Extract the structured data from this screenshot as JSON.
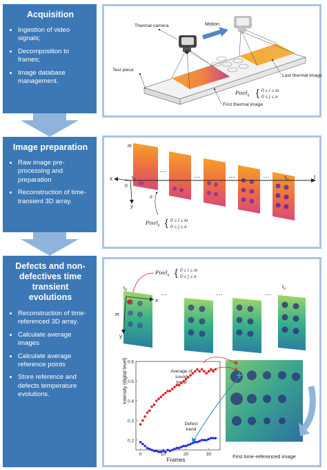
{
  "stages": [
    {
      "title": "Acquisition",
      "bullets": [
        "Ingestion of video signals;",
        "Decomposition to frames;",
        "Image database management."
      ]
    },
    {
      "title": "Image preparation",
      "bullets": [
        "Raw image pre-processing and preparation",
        "Reconstruction of time-transient 3D array."
      ]
    },
    {
      "title": "Defects and non-defectives time transient evolutions",
      "bullets": [
        "Reconstruction of time-referenced 3D array.",
        "Calculate average images",
        "Calculate average reference points",
        "Store reference and defects temperature evolutions."
      ]
    }
  ],
  "acquisition_diagram": {
    "thermal_camera": "Thermal camera",
    "motion": "Motion",
    "test_piece": "Test piece",
    "last_thermal_image": "Last thermal image",
    "first_thermal_image": "First thermal image",
    "pixel": "Pixel",
    "pixel_sub": "ij",
    "cond_i": "0 ≤ i ≤ m",
    "cond_j": "0 ≤ j ≤ n"
  },
  "preparation_diagram": {
    "m": "m",
    "x": "x",
    "y": "y",
    "n": "n",
    "zero": "0",
    "t0": "t",
    "t0_sub": "0",
    "tn": "t",
    "tn_sub": "n",
    "t": "t",
    "dots": "…",
    "pixel": "Pixel",
    "pixel_sub": "ij",
    "cond_i": "0 ≤ i ≤ m",
    "cond_j": "0 ≤ j ≤ n"
  },
  "defects_diagram": {
    "pixel": "Pixel",
    "pixel_sub": "ij",
    "cond_i": "0 ≤ i ≤ m",
    "cond_j": "0 ≤ j ≤ n",
    "t0": "t",
    "t0_sub": "0",
    "tn": "t",
    "tn_sub": "n",
    "x": "x",
    "y": "y",
    "m": "m",
    "dots": "…",
    "sound_label": "Average of sound trend",
    "defect_label": "Defect trend",
    "image_caption": "First time-referenced image"
  },
  "chart_data": {
    "type": "scatter",
    "xlabel": "Frames",
    "ylabel": "Intensity (digital level)",
    "xlim": [
      -2,
      35
    ],
    "ylim": [
      0.15,
      0.6
    ],
    "xticks": [
      0,
      10,
      20,
      30
    ],
    "yticks": [
      0.2,
      0.3,
      0.4,
      0.5,
      0.6
    ],
    "series": [
      {
        "color": "#dd1f1f",
        "x": [
          0,
          1,
          2,
          3,
          4,
          5,
          6,
          7,
          8,
          9,
          10,
          11,
          12,
          13,
          14,
          15,
          16,
          17,
          18,
          19,
          20,
          21,
          22,
          23,
          24,
          25,
          26,
          27,
          28,
          29,
          30,
          31,
          32,
          33
        ],
        "y": [
          0.28,
          0.3,
          0.32,
          0.34,
          0.35,
          0.37,
          0.38,
          0.4,
          0.41,
          0.42,
          0.43,
          0.44,
          0.45,
          0.45,
          0.46,
          0.47,
          0.48,
          0.48,
          0.49,
          0.5,
          0.51,
          0.52,
          0.53,
          0.54,
          0.55,
          0.56,
          0.55,
          0.56,
          0.55,
          0.54,
          0.55,
          0.56,
          0.55,
          0.56
        ]
      },
      {
        "color": "#1f2fd8",
        "x": [
          0,
          1,
          2,
          3,
          4,
          5,
          6,
          7,
          8,
          9,
          10,
          11,
          12,
          13,
          14,
          15,
          16,
          17,
          18,
          19,
          20,
          21,
          22,
          23,
          24,
          25,
          26,
          27,
          28,
          29,
          30,
          31,
          32,
          33
        ],
        "y": [
          0.19,
          0.18,
          0.17,
          0.16,
          0.155,
          0.15,
          0.145,
          0.145,
          0.14,
          0.14,
          0.145,
          0.14,
          0.15,
          0.145,
          0.15,
          0.155,
          0.16,
          0.16,
          0.165,
          0.17,
          0.17,
          0.175,
          0.18,
          0.185,
          0.19,
          0.19,
          0.195,
          0.2,
          0.2,
          0.2,
          0.205,
          0.21,
          0.21,
          0.21
        ]
      }
    ]
  }
}
